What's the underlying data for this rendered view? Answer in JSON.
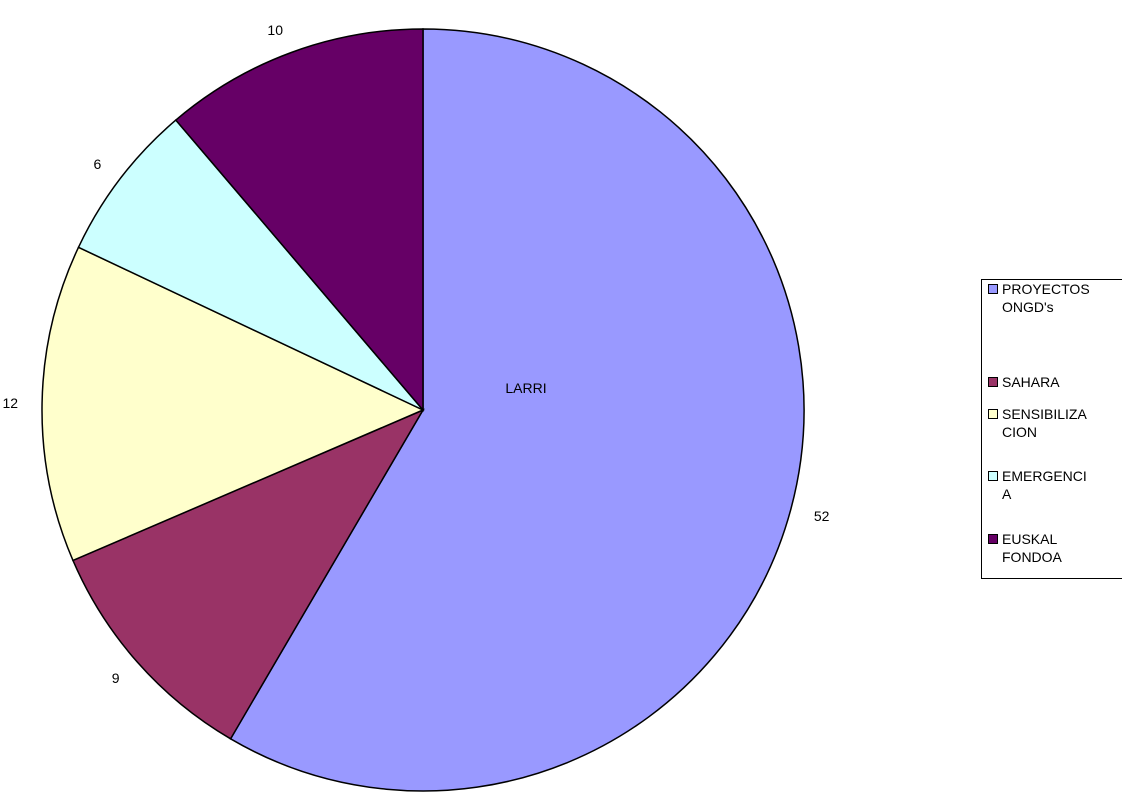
{
  "chart_data": {
    "type": "pie",
    "title": "LARRI",
    "categories": [
      "PROYECTOS ONGD's",
      "SAHARA",
      "SENSIBILIZACION",
      "EMERGENCIA",
      "EUSKAL FONDOA"
    ],
    "legend_lines": [
      [
        "PROYECTOS",
        "ONGD's"
      ],
      [
        "SAHARA"
      ],
      [
        "SENSIBILIZA",
        "CION"
      ],
      [
        "EMERGENCI",
        "A"
      ],
      [
        "EUSKAL",
        "FONDOA"
      ]
    ],
    "values": [
      52,
      9,
      12,
      6,
      10
    ],
    "colors": [
      "#9999FF",
      "#993366",
      "#FFFFCC",
      "#CCFFFF",
      "#660066"
    ],
    "legend_position": "right",
    "start_angle_deg": 0,
    "direction": "clockwise"
  }
}
